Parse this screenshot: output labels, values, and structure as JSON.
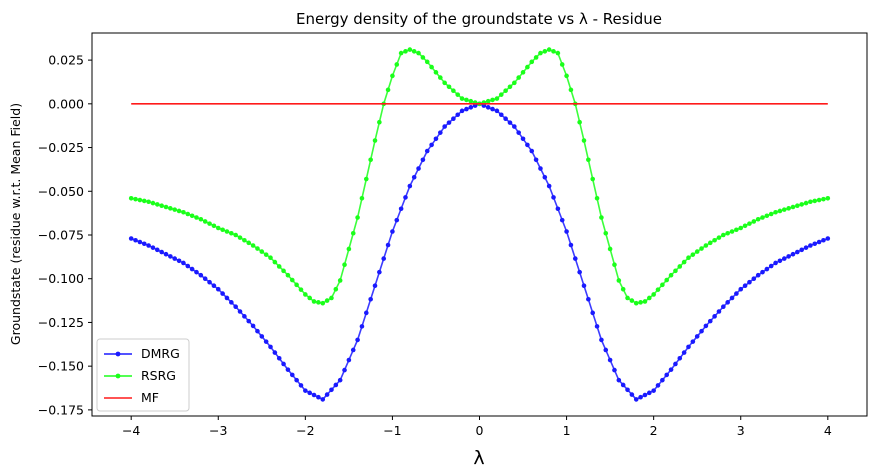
{
  "chart_data": {
    "type": "line",
    "title": "Energy density of the groundstate vs λ - Residue",
    "xlabel": "λ",
    "ylabel": "Groundstate (residue w.r.t. Mean Field)",
    "xlim": [
      -4.45,
      4.45
    ],
    "ylim": [
      -0.1785,
      0.0405
    ],
    "x_ticks": [
      -4,
      -3,
      -2,
      -1,
      0,
      1,
      2,
      3,
      4
    ],
    "y_ticks": [
      0.025,
      0.0,
      -0.025,
      -0.05,
      -0.075,
      -0.1,
      -0.125,
      -0.15,
      -0.175
    ],
    "y_tick_labels": [
      "0.025",
      "0.000",
      "−0.025",
      "−0.050",
      "−0.075",
      "−0.100",
      "−0.125",
      "−0.150",
      "−0.175"
    ],
    "grid": false,
    "legend_position": "lower-left",
    "x_samples": {
      "start": -4,
      "end": 4,
      "count": 161
    },
    "series": [
      {
        "name": "DMRG",
        "color": "#1a1aff",
        "marker": "dot",
        "profile_x": [
          0,
          0.2,
          0.4,
          0.6,
          0.8,
          1.0,
          1.2,
          1.4,
          1.6,
          1.8,
          2.0,
          2.2,
          2.4,
          2.6,
          2.8,
          3.0,
          3.2,
          3.4,
          3.6,
          3.8,
          4.0
        ],
        "profile_y": [
          0.0,
          -0.004,
          -0.013,
          -0.027,
          -0.047,
          -0.073,
          -0.104,
          -0.135,
          -0.158,
          -0.169,
          -0.164,
          -0.152,
          -0.139,
          -0.127,
          -0.116,
          -0.106,
          -0.098,
          -0.091,
          -0.086,
          -0.081,
          -0.077
        ]
      },
      {
        "name": "RSRG",
        "color": "#1aff1a",
        "marker": "dot",
        "profile_x": [
          0,
          0.2,
          0.4,
          0.6,
          0.7,
          0.8,
          0.9,
          1.0,
          1.1,
          1.2,
          1.4,
          1.6,
          1.7,
          1.8,
          1.9,
          2.0,
          2.2,
          2.4,
          2.6,
          2.8,
          3.0,
          3.2,
          3.4,
          3.6,
          3.8,
          4.0
        ],
        "profile_y": [
          0.0,
          0.003,
          0.012,
          0.024,
          0.029,
          0.031,
          0.029,
          0.016,
          0.0,
          -0.021,
          -0.065,
          -0.101,
          -0.111,
          -0.114,
          -0.113,
          -0.109,
          -0.098,
          -0.088,
          -0.081,
          -0.075,
          -0.071,
          -0.066,
          -0.062,
          -0.059,
          -0.056,
          -0.054
        ]
      },
      {
        "name": "MF",
        "color": "#ff1a1a",
        "marker": "none",
        "profile_x": [
          0,
          4.0
        ],
        "profile_y": [
          0.0,
          0.0
        ]
      }
    ]
  }
}
